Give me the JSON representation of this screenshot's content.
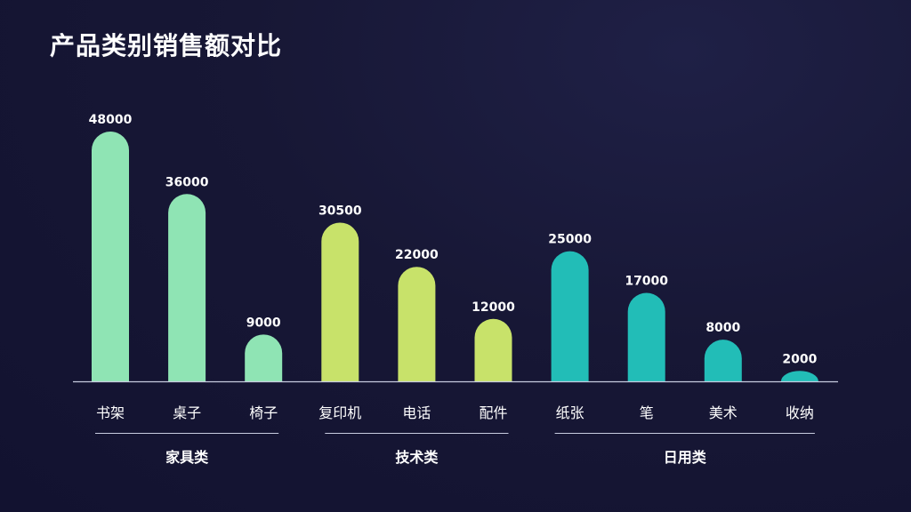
{
  "title": "产品类别销售额对比",
  "chart_data": {
    "type": "bar",
    "title": "产品类别销售额对比",
    "categories": [
      "书架",
      "桌子",
      "椅子",
      "复印机",
      "电话",
      "配件",
      "纸张",
      "笔",
      "美术",
      "收纳"
    ],
    "values": [
      48000,
      36000,
      9000,
      30500,
      22000,
      12000,
      25000,
      17000,
      8000,
      2000
    ],
    "groups": [
      {
        "name": "家具类",
        "categories": [
          "书架",
          "桌子",
          "椅子"
        ],
        "color": "#8fe4b4"
      },
      {
        "name": "技术类",
        "categories": [
          "复印机",
          "电话",
          "配件"
        ],
        "color": "#c8e26a"
      },
      {
        "name": "日用类",
        "categories": [
          "纸张",
          "笔",
          "美术",
          "收纳"
        ],
        "color": "#22bdb7"
      }
    ],
    "xlabel": "",
    "ylabel": "",
    "ylim": [
      0,
      48000
    ],
    "grid": false,
    "data_labels": true,
    "colors": {
      "background": "#16163a",
      "baseline": "#c8cce0",
      "text": "#ffffff"
    }
  }
}
